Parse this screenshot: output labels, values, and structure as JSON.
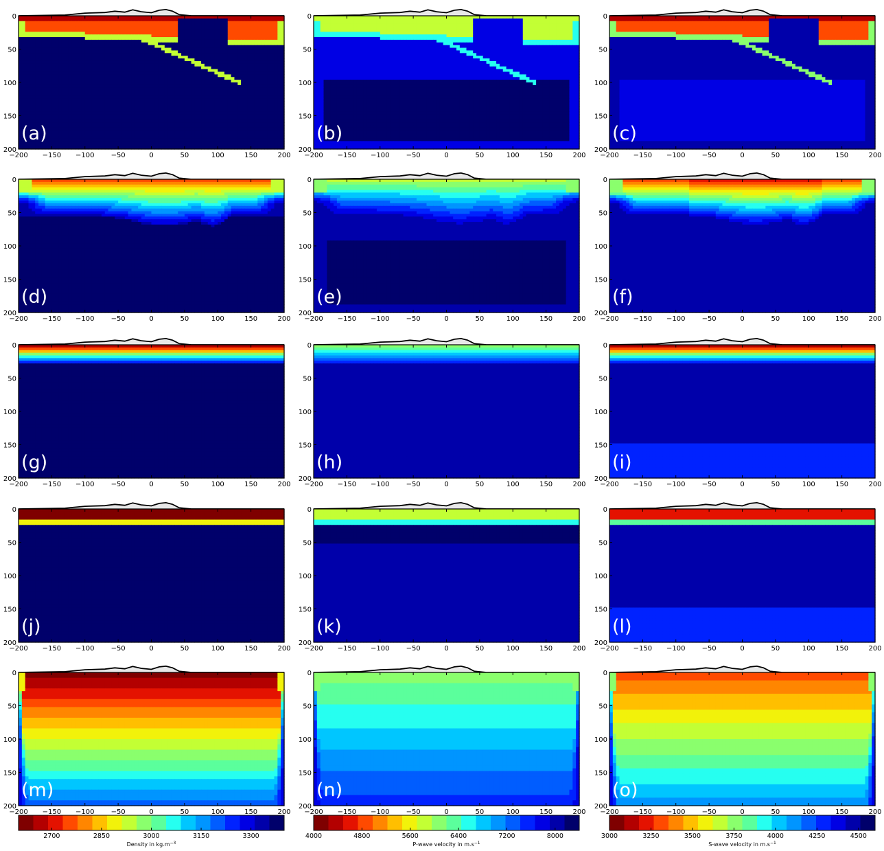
{
  "chart_data": {
    "type": "heatmap",
    "layout": {
      "rows": 5,
      "cols": 3
    },
    "x_range": [
      -200,
      200
    ],
    "y_range": [
      0,
      200
    ],
    "y_inverted": true,
    "x_ticks": [
      -200,
      -150,
      -100,
      -50,
      0,
      50,
      100,
      150,
      200
    ],
    "y_ticks": [
      0,
      50,
      100,
      150,
      200
    ],
    "topography": {
      "x": [
        -200,
        -130,
        -100,
        -70,
        -55,
        -40,
        -28,
        -15,
        0,
        12,
        22,
        32,
        42,
        60,
        200
      ],
      "h": [
        0,
        0.08,
        0.28,
        0.34,
        0.48,
        0.38,
        0.62,
        0.42,
        0.32,
        0.58,
        0.65,
        0.48,
        0.12,
        0,
        0
      ],
      "fill_color": "#e8e8e8"
    },
    "panels": [
      {
        "label": "(a)",
        "row": 0,
        "col": 0,
        "property": "density",
        "model": "layered"
      },
      {
        "label": "(b)",
        "row": 0,
        "col": 1,
        "property": "p-wave",
        "model": "layered"
      },
      {
        "label": "(c)",
        "row": 0,
        "col": 2,
        "property": "s-wave",
        "model": "layered"
      },
      {
        "label": "(d)",
        "row": 1,
        "col": 0,
        "property": "density",
        "model": "smooth"
      },
      {
        "label": "(e)",
        "row": 1,
        "col": 1,
        "property": "p-wave",
        "model": "smooth"
      },
      {
        "label": "(f)",
        "row": 1,
        "col": 2,
        "property": "s-wave",
        "model": "smooth"
      },
      {
        "label": "(g)",
        "row": 2,
        "col": 0,
        "property": "density",
        "model": "thin-gradient"
      },
      {
        "label": "(h)",
        "row": 2,
        "col": 1,
        "property": "p-wave",
        "model": "thin-gradient"
      },
      {
        "label": "(i)",
        "row": 2,
        "col": 2,
        "property": "s-wave",
        "model": "thin-gradient"
      },
      {
        "label": "(j)",
        "row": 3,
        "col": 0,
        "property": "density",
        "model": "two-layer"
      },
      {
        "label": "(k)",
        "row": 3,
        "col": 1,
        "property": "p-wave",
        "model": "two-layer"
      },
      {
        "label": "(l)",
        "row": 3,
        "col": 2,
        "property": "s-wave",
        "model": "two-layer"
      },
      {
        "label": "(m)",
        "row": 4,
        "col": 0,
        "property": "density",
        "model": "deep-gradient"
      },
      {
        "label": "(n)",
        "row": 4,
        "col": 1,
        "property": "p-wave",
        "model": "deep-gradient"
      },
      {
        "label": "(o)",
        "row": 4,
        "col": 2,
        "property": "s-wave",
        "model": "deep-gradient"
      }
    ],
    "colorbars": [
      {
        "title": "Density in kg.m",
        "superscript": "−3",
        "range": [
          2600,
          3400
        ],
        "ticks": [
          2700,
          2850,
          3000,
          3150,
          3300
        ],
        "reversed": true
      },
      {
        "title": "P-wave velocity in m.s",
        "superscript": "−1",
        "range": [
          4000,
          8400
        ],
        "ticks": [
          4000,
          4800,
          5600,
          6400,
          7200,
          8000
        ],
        "reversed": false
      },
      {
        "title": "S-wave velocity in m.s",
        "superscript": "−1",
        "range": [
          3000,
          4600
        ],
        "ticks": [
          3000,
          3250,
          3500,
          3750,
          4000,
          4250,
          4500
        ],
        "reversed": false
      }
    ],
    "colormap": [
      "#7f0000",
      "#b30000",
      "#e41200",
      "#ff4a00",
      "#ff8600",
      "#ffbf00",
      "#f2f20a",
      "#c3ff34",
      "#8aff6d",
      "#5bff9c",
      "#26fff0",
      "#00c6ff",
      "#0095ff",
      "#005dff",
      "#0022ff",
      "#0000e4",
      "#0000aa",
      "#00006b"
    ],
    "y_label_text": [
      {
        "text": "0"
      },
      {
        "text": "50"
      },
      {
        "text": "100"
      },
      {
        "text": "150"
      },
      {
        "text": "200"
      }
    ],
    "x_label_text": [
      {
        "text": "−200"
      },
      {
        "text": "−150"
      },
      {
        "text": "−100"
      },
      {
        "text": "−50"
      },
      {
        "text": "0"
      },
      {
        "text": "50"
      },
      {
        "text": "100"
      },
      {
        "text": "150"
      },
      {
        "text": "200"
      }
    ]
  }
}
